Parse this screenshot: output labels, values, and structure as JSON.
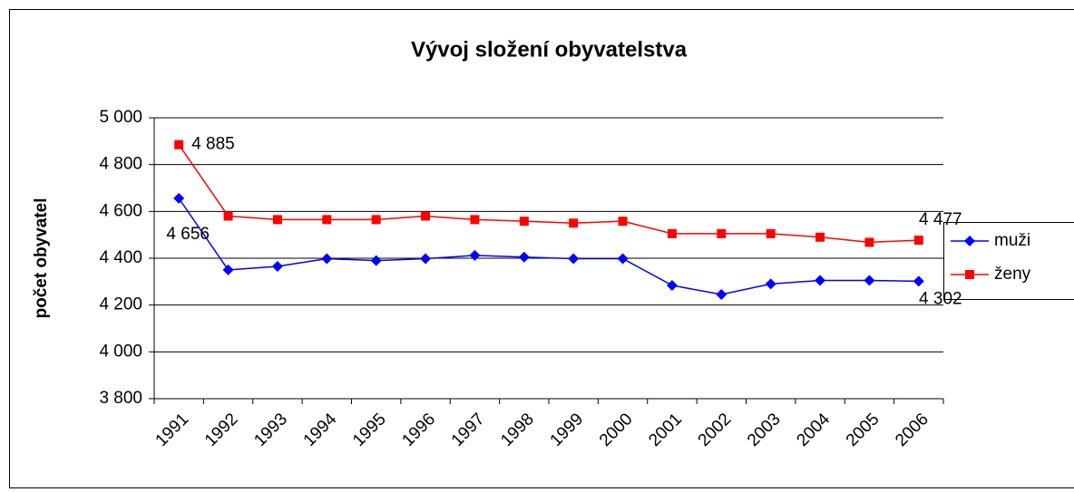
{
  "chart_data": {
    "type": "line",
    "title": "Vývoj složení obyvatelstva",
    "y_label": "počet obyvatel",
    "categories": [
      "1991",
      "1992",
      "1993",
      "1994",
      "1995",
      "1996",
      "1997",
      "1998",
      "1999",
      "2000",
      "2001",
      "2002",
      "2003",
      "2004",
      "2005",
      "2006"
    ],
    "series": [
      {
        "name": "muži",
        "color": "#0000ff",
        "marker": "diamond",
        "values": [
          4656,
          4350,
          4365,
          4398,
          4390,
          4398,
          4412,
          4405,
          4398,
          4398,
          4284,
          4245,
          4290,
          4305,
          4305,
          4302
        ],
        "value_labels": [
          "4 656",
          null,
          null,
          null,
          null,
          null,
          null,
          null,
          null,
          null,
          null,
          null,
          null,
          null,
          null,
          "4 302"
        ]
      },
      {
        "name": "ženy",
        "color": "#ff0000",
        "marker": "square",
        "values": [
          4885,
          4580,
          4565,
          4565,
          4565,
          4580,
          4565,
          4558,
          4550,
          4558,
          4505,
          4505,
          4505,
          4490,
          4468,
          4477
        ],
        "value_labels": [
          "4 885",
          null,
          null,
          null,
          null,
          null,
          null,
          null,
          null,
          null,
          null,
          null,
          null,
          null,
          null,
          "4 477"
        ]
      }
    ],
    "ylim": [
      3800,
      5000
    ],
    "yticks": [
      {
        "value": 3800,
        "label": "3 800"
      },
      {
        "value": 4000,
        "label": "4 000"
      },
      {
        "value": 4200,
        "label": "4 200"
      },
      {
        "value": 4400,
        "label": "4 400"
      },
      {
        "value": 4600,
        "label": "4 600"
      },
      {
        "value": 4800,
        "label": "4 800"
      },
      {
        "value": 5000,
        "label": "5 000"
      }
    ],
    "grid": true,
    "legend": "right"
  }
}
